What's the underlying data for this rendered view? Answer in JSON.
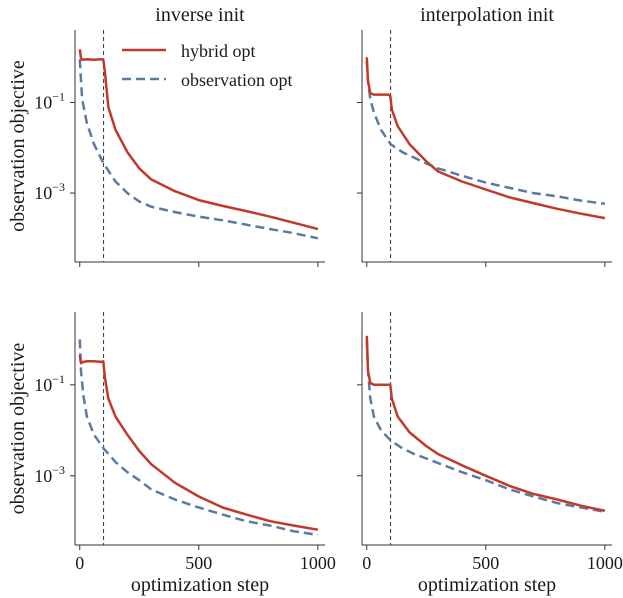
{
  "colors": {
    "hybrid": "#c0392b",
    "observation": "#5b7aa0",
    "axis": "#333333",
    "marker": "#333333"
  },
  "legend": {
    "entries": [
      "hybrid opt",
      "observation opt"
    ],
    "placement": "top-right of first panel"
  },
  "chart_data": [
    {
      "type": "line",
      "title": "inverse init",
      "xlabel": "",
      "ylabel": "observation objective",
      "y_scale": "log",
      "xlim": [
        -20,
        1030
      ],
      "ylim": [
        3e-05,
        4.0
      ],
      "x_ticks": [
        0,
        500,
        1000
      ],
      "x_tick_labels": [
        "",
        "",
        ""
      ],
      "y_ticks": [
        0.1,
        0.001
      ],
      "y_tick_labels": [
        "10^-1",
        "10^-3"
      ],
      "vline_x": 100,
      "series": [
        {
          "name": "hybrid opt",
          "x": [
            0,
            5,
            10,
            30,
            60,
            90,
            99,
            105,
            120,
            150,
            200,
            250,
            300,
            400,
            500,
            600,
            700,
            800,
            900,
            1000
          ],
          "y": [
            1.5,
            0.95,
            0.88,
            0.9,
            0.88,
            0.9,
            0.88,
            0.5,
            0.08,
            0.025,
            0.008,
            0.0035,
            0.002,
            0.0011,
            0.0007,
            0.00052,
            0.0004,
            0.0003,
            0.00022,
            0.00016
          ]
        },
        {
          "name": "observation opt",
          "x": [
            0,
            10,
            30,
            60,
            100,
            150,
            200,
            250,
            300,
            400,
            500,
            600,
            700,
            800,
            900,
            1000
          ],
          "y": [
            0.9,
            0.12,
            0.035,
            0.012,
            0.0045,
            0.0018,
            0.001,
            0.00065,
            0.0005,
            0.00038,
            0.0003,
            0.00025,
            0.0002,
            0.00016,
            0.00013,
            0.0001
          ]
        }
      ]
    },
    {
      "type": "line",
      "title": "interpolation init",
      "xlabel": "",
      "ylabel": "",
      "y_scale": "log",
      "xlim": [
        -20,
        1030
      ],
      "ylim": [
        3e-05,
        4.0
      ],
      "x_ticks": [
        0,
        500,
        1000
      ],
      "x_tick_labels": [
        "",
        "",
        ""
      ],
      "y_ticks": [
        0.1,
        0.001
      ],
      "y_tick_labels": [
        "",
        ""
      ],
      "vline_x": 100,
      "series": [
        {
          "name": "hybrid opt",
          "x": [
            0,
            5,
            15,
            30,
            60,
            90,
            99,
            105,
            130,
            180,
            250,
            300,
            400,
            500,
            600,
            700,
            800,
            900,
            1000
          ],
          "y": [
            1.0,
            0.3,
            0.16,
            0.15,
            0.15,
            0.15,
            0.14,
            0.07,
            0.03,
            0.012,
            0.005,
            0.003,
            0.0018,
            0.0012,
            0.0008,
            0.0006,
            0.00045,
            0.00035,
            0.00028
          ]
        },
        {
          "name": "observation opt",
          "x": [
            0,
            5,
            15,
            30,
            60,
            100,
            150,
            200,
            250,
            300,
            400,
            500,
            600,
            700,
            800,
            900,
            1000
          ],
          "y": [
            0.8,
            0.3,
            0.12,
            0.06,
            0.025,
            0.012,
            0.008,
            0.006,
            0.0045,
            0.0035,
            0.0024,
            0.0017,
            0.0013,
            0.001,
            0.00085,
            0.00068,
            0.00058
          ]
        }
      ]
    },
    {
      "type": "line",
      "title": "",
      "xlabel": "optimization step",
      "ylabel": "observation objective",
      "y_scale": "log",
      "xlim": [
        -20,
        1030
      ],
      "ylim": [
        3e-05,
        4.0
      ],
      "x_ticks": [
        0,
        500,
        1000
      ],
      "x_tick_labels": [
        "0",
        "500",
        "1000"
      ],
      "y_ticks": [
        0.1,
        0.001
      ],
      "y_tick_labels": [
        "10^-1",
        "10^-3"
      ],
      "vline_x": 100,
      "series": [
        {
          "name": "hybrid opt",
          "x": [
            0,
            5,
            15,
            30,
            60,
            90,
            99,
            105,
            120,
            150,
            200,
            250,
            300,
            400,
            500,
            600,
            700,
            800,
            900,
            1000
          ],
          "y": [
            0.45,
            0.3,
            0.32,
            0.33,
            0.33,
            0.32,
            0.33,
            0.15,
            0.05,
            0.02,
            0.008,
            0.0035,
            0.0018,
            0.0007,
            0.00035,
            0.0002,
            0.00014,
            0.0001,
            8e-05,
            6.5e-05
          ]
        },
        {
          "name": "observation opt",
          "x": [
            0,
            5,
            15,
            30,
            60,
            100,
            150,
            200,
            250,
            300,
            400,
            500,
            600,
            700,
            800,
            900,
            1000
          ],
          "y": [
            1.0,
            0.2,
            0.06,
            0.02,
            0.008,
            0.004,
            0.002,
            0.0012,
            0.0008,
            0.0005,
            0.0003,
            0.0002,
            0.00014,
            0.0001,
            8e-05,
            6e-05,
            5e-05
          ]
        }
      ]
    },
    {
      "type": "line",
      "title": "",
      "xlabel": "optimization step",
      "ylabel": "",
      "y_scale": "log",
      "xlim": [
        -20,
        1030
      ],
      "ylim": [
        3e-05,
        4.0
      ],
      "x_ticks": [
        0,
        500,
        1000
      ],
      "x_tick_labels": [
        "0",
        "500",
        "1000"
      ],
      "y_ticks": [
        0.1,
        0.001
      ],
      "y_tick_labels": [
        "",
        ""
      ],
      "vline_x": 100,
      "series": [
        {
          "name": "hybrid opt",
          "x": [
            0,
            5,
            15,
            30,
            60,
            90,
            99,
            105,
            130,
            180,
            250,
            300,
            400,
            500,
            600,
            700,
            800,
            900,
            1000
          ],
          "y": [
            1.2,
            0.2,
            0.11,
            0.1,
            0.1,
            0.1,
            0.1,
            0.05,
            0.02,
            0.009,
            0.0045,
            0.003,
            0.0017,
            0.001,
            0.0006,
            0.0004,
            0.0003,
            0.00022,
            0.00017
          ]
        },
        {
          "name": "observation opt",
          "x": [
            0,
            5,
            15,
            30,
            60,
            100,
            150,
            200,
            250,
            300,
            400,
            500,
            600,
            700,
            800,
            900,
            1000
          ],
          "y": [
            1.0,
            0.2,
            0.05,
            0.02,
            0.01,
            0.006,
            0.004,
            0.003,
            0.0024,
            0.0019,
            0.0012,
            0.0008,
            0.0005,
            0.00035,
            0.00025,
            0.0002,
            0.00016
          ]
        }
      ]
    }
  ]
}
